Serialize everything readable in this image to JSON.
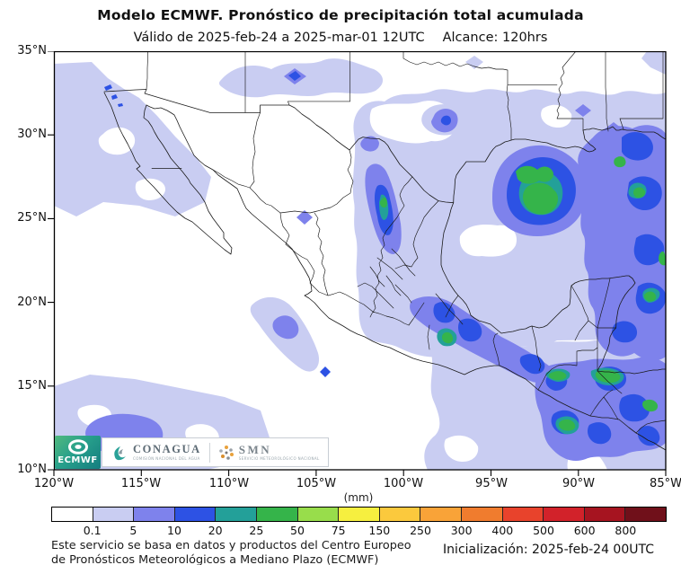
{
  "title": "Modelo ECMWF. Pronóstico de precipitación total acumulada",
  "subtitle": {
    "valid": "Válido de 2025-feb-24 a 2025-mar-01 12UTC",
    "alcance": "Alcance: 120hrs"
  },
  "axes": {
    "lat": [
      "35°N",
      "30°N",
      "25°N",
      "20°N",
      "15°N",
      "10°N"
    ],
    "lon": [
      "120°W",
      "115°W",
      "110°W",
      "105°W",
      "100°W",
      "95°W",
      "90°W",
      "85°W"
    ]
  },
  "colorbar": {
    "unit_label": "(mm)",
    "ticks": [
      "0.1",
      "5",
      "10",
      "20",
      "25",
      "50",
      "75",
      "150",
      "250",
      "300",
      "400",
      "500",
      "600",
      "800"
    ],
    "colors": [
      "#ffffff",
      "#c9cdf2",
      "#7e82ec",
      "#2d52e4",
      "#23a099",
      "#35b44a",
      "#98dd4b",
      "#f6ef3f",
      "#fbc93d",
      "#f9a338",
      "#f07c2e",
      "#e8432c",
      "#d2222a",
      "#a61420",
      "#70101a"
    ]
  },
  "logos": {
    "ecmwf": {
      "label": "ECMWF"
    },
    "conagua": {
      "label": "CONAGUA",
      "sublabel": "COMISIÓN NACIONAL DEL AGUA"
    },
    "smn": {
      "label": "SMN",
      "sublabel": "SERVICIO METEOROLÓGICO NACIONAL"
    }
  },
  "footer": {
    "disclaimer_line1": "Este servicio se basa en datos y productos del Centro Europeo",
    "disclaimer_line2": "de Pronósticos Meteorológicos a Mediano Plazo (ECMWF)",
    "initialization": "Inicialización: 2025-feb-24 00UTC"
  }
}
